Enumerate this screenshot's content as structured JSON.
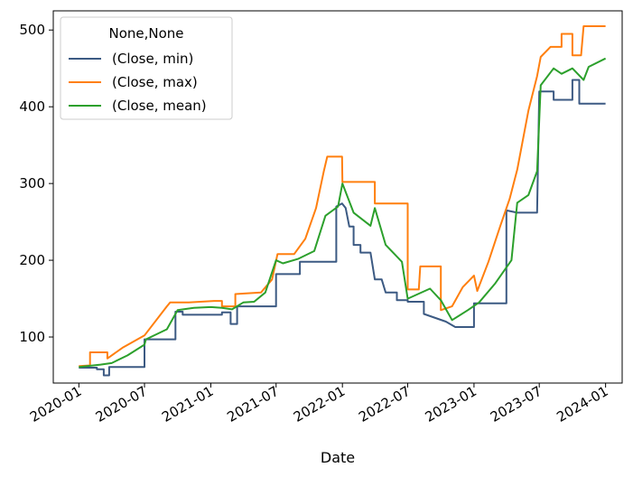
{
  "chart_data": {
    "type": "line",
    "title": "",
    "xlabel": "Date",
    "ylabel": "",
    "x_ticks": [
      "2020-01",
      "2020-07",
      "2021-01",
      "2021-07",
      "2022-01",
      "2022-07",
      "2023-01",
      "2023-07",
      "2024-01"
    ],
    "y_ticks": [
      100,
      200,
      300,
      400,
      500
    ],
    "xlim": [
      "2019-10-22",
      "2024-02-16"
    ],
    "ylim": [
      40,
      525
    ],
    "grid": false,
    "legend": {
      "title": "None,None",
      "position": "top-left",
      "entries": [
        "(Close, min)",
        "(Close, max)",
        "(Close, mean)"
      ]
    },
    "series": [
      {
        "name": "(Close, min)",
        "color": "#3c5a83",
        "points": [
          [
            "2020-01-01",
            60
          ],
          [
            "2020-02-20",
            60
          ],
          [
            "2020-02-20",
            58
          ],
          [
            "2020-03-10",
            58
          ],
          [
            "2020-03-10",
            50
          ],
          [
            "2020-03-25",
            50
          ],
          [
            "2020-03-25",
            61
          ],
          [
            "2020-07-01",
            61
          ],
          [
            "2020-07-01",
            97
          ],
          [
            "2020-09-25",
            97
          ],
          [
            "2020-09-25",
            133
          ],
          [
            "2020-10-15",
            133
          ],
          [
            "2020-10-15",
            129
          ],
          [
            "2021-02-01",
            129
          ],
          [
            "2021-02-01",
            132
          ],
          [
            "2021-02-25",
            132
          ],
          [
            "2021-02-25",
            117
          ],
          [
            "2021-03-15",
            117
          ],
          [
            "2021-03-15",
            140
          ],
          [
            "2021-07-01",
            140
          ],
          [
            "2021-07-01",
            182
          ],
          [
            "2021-09-05",
            182
          ],
          [
            "2021-09-05",
            198
          ],
          [
            "2021-12-15",
            198
          ],
          [
            "2021-12-15",
            270
          ],
          [
            "2021-12-31",
            274
          ],
          [
            "2022-01-10",
            268
          ],
          [
            "2022-01-20",
            244
          ],
          [
            "2022-02-01",
            244
          ],
          [
            "2022-02-01",
            220
          ],
          [
            "2022-02-20",
            220
          ],
          [
            "2022-02-20",
            210
          ],
          [
            "2022-03-20",
            210
          ],
          [
            "2022-04-01",
            175
          ],
          [
            "2022-04-20",
            175
          ],
          [
            "2022-05-01",
            158
          ],
          [
            "2022-06-01",
            158
          ],
          [
            "2022-06-01",
            148
          ],
          [
            "2022-07-01",
            148
          ],
          [
            "2022-07-01",
            146
          ],
          [
            "2022-08-15",
            146
          ],
          [
            "2022-08-15",
            130
          ],
          [
            "2022-10-15",
            120
          ],
          [
            "2022-11-10",
            113
          ],
          [
            "2023-01-01",
            113
          ],
          [
            "2023-01-01",
            144
          ],
          [
            "2023-04-01",
            144
          ],
          [
            "2023-04-01",
            265
          ],
          [
            "2023-05-01",
            262
          ],
          [
            "2023-06-25",
            262
          ],
          [
            "2023-07-01",
            420
          ],
          [
            "2023-08-10",
            420
          ],
          [
            "2023-08-10",
            409
          ],
          [
            "2023-10-01",
            409
          ],
          [
            "2023-10-01",
            435
          ],
          [
            "2023-10-20",
            435
          ],
          [
            "2023-10-20",
            404
          ],
          [
            "2024-01-01",
            404
          ]
        ]
      },
      {
        "name": "(Close, max)",
        "color": "#ff7f0e",
        "points": [
          [
            "2020-01-01",
            62
          ],
          [
            "2020-02-01",
            63
          ],
          [
            "2020-02-01",
            80
          ],
          [
            "2020-03-20",
            80
          ],
          [
            "2020-03-20",
            72
          ],
          [
            "2020-05-01",
            86
          ],
          [
            "2020-07-01",
            102
          ],
          [
            "2020-09-01",
            140
          ],
          [
            "2020-09-10",
            145
          ],
          [
            "2020-11-01",
            145
          ],
          [
            "2021-01-10",
            147
          ],
          [
            "2021-02-01",
            147
          ],
          [
            "2021-02-01",
            140
          ],
          [
            "2021-03-10",
            140
          ],
          [
            "2021-03-10",
            156
          ],
          [
            "2021-05-20",
            158
          ],
          [
            "2021-06-20",
            175
          ],
          [
            "2021-07-05",
            208
          ],
          [
            "2021-08-20",
            208
          ],
          [
            "2021-09-20",
            228
          ],
          [
            "2021-10-20",
            268
          ],
          [
            "2021-11-10",
            315
          ],
          [
            "2021-11-20",
            335
          ],
          [
            "2021-12-31",
            335
          ],
          [
            "2022-01-01",
            302
          ],
          [
            "2022-04-01",
            302
          ],
          [
            "2022-04-01",
            274
          ],
          [
            "2022-07-01",
            274
          ],
          [
            "2022-07-01",
            162
          ],
          [
            "2022-08-01",
            162
          ],
          [
            "2022-08-05",
            192
          ],
          [
            "2022-10-01",
            192
          ],
          [
            "2022-10-01",
            135
          ],
          [
            "2022-11-01",
            140
          ],
          [
            "2022-12-01",
            165
          ],
          [
            "2023-01-01",
            180
          ],
          [
            "2023-01-10",
            160
          ],
          [
            "2023-02-10",
            198
          ],
          [
            "2023-03-15",
            245
          ],
          [
            "2023-04-10",
            280
          ],
          [
            "2023-05-01",
            318
          ],
          [
            "2023-06-01",
            395
          ],
          [
            "2023-06-25",
            440
          ],
          [
            "2023-07-05",
            465
          ],
          [
            "2023-08-01",
            478
          ],
          [
            "2023-09-01",
            478
          ],
          [
            "2023-09-01",
            495
          ],
          [
            "2023-10-01",
            495
          ],
          [
            "2023-10-01",
            467
          ],
          [
            "2023-10-25",
            467
          ],
          [
            "2023-11-01",
            505
          ],
          [
            "2024-01-01",
            505
          ]
        ]
      },
      {
        "name": "(Close, mean)",
        "color": "#2ca02c",
        "points": [
          [
            "2020-01-01",
            61
          ],
          [
            "2020-03-01",
            64
          ],
          [
            "2020-04-01",
            66
          ],
          [
            "2020-05-15",
            76
          ],
          [
            "2020-07-01",
            90
          ],
          [
            "2020-07-05",
            97
          ],
          [
            "2020-09-01",
            110
          ],
          [
            "2020-10-01",
            135
          ],
          [
            "2020-11-15",
            138
          ],
          [
            "2021-01-01",
            139
          ],
          [
            "2021-02-01",
            138
          ],
          [
            "2021-03-01",
            136
          ],
          [
            "2021-04-01",
            145
          ],
          [
            "2021-05-01",
            146
          ],
          [
            "2021-06-01",
            158
          ],
          [
            "2021-07-01",
            200
          ],
          [
            "2021-07-20",
            196
          ],
          [
            "2021-09-01",
            202
          ],
          [
            "2021-10-15",
            212
          ],
          [
            "2021-11-15",
            258
          ],
          [
            "2021-12-20",
            270
          ],
          [
            "2022-01-01",
            300
          ],
          [
            "2022-02-01",
            262
          ],
          [
            "2022-03-20",
            245
          ],
          [
            "2022-04-01",
            268
          ],
          [
            "2022-05-01",
            220
          ],
          [
            "2022-06-15",
            198
          ],
          [
            "2022-07-01",
            150
          ],
          [
            "2022-09-01",
            163
          ],
          [
            "2022-10-01",
            148
          ],
          [
            "2022-11-01",
            122
          ],
          [
            "2022-12-15",
            135
          ],
          [
            "2023-01-15",
            145
          ],
          [
            "2023-03-01",
            170
          ],
          [
            "2023-04-15",
            200
          ],
          [
            "2023-05-01",
            275
          ],
          [
            "2023-06-01",
            285
          ],
          [
            "2023-06-25",
            316
          ],
          [
            "2023-07-05",
            428
          ],
          [
            "2023-08-10",
            450
          ],
          [
            "2023-09-01",
            443
          ],
          [
            "2023-10-01",
            450
          ],
          [
            "2023-11-01",
            435
          ],
          [
            "2023-11-15",
            452
          ],
          [
            "2024-01-01",
            463
          ]
        ]
      }
    ]
  }
}
